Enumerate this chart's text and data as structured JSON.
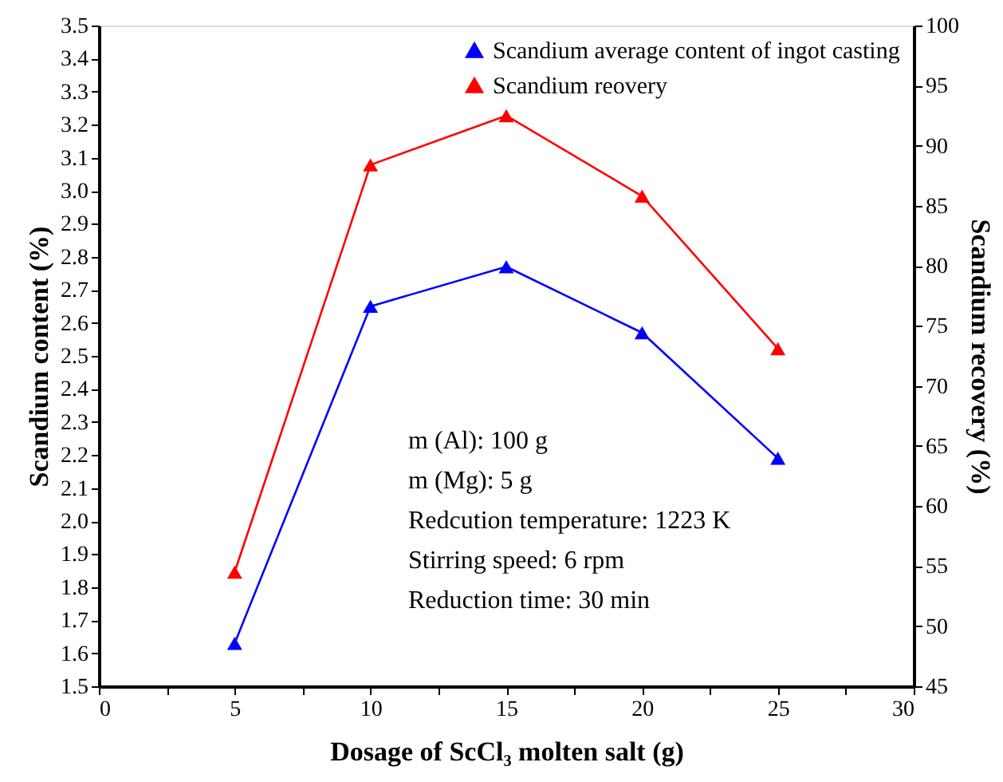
{
  "chart_data": {
    "type": "line",
    "x": [
      5,
      10,
      15,
      20,
      25
    ],
    "series": [
      {
        "name": "Scandium average content of ingot casting",
        "color": "#0000ff",
        "values": [
          1.63,
          2.65,
          2.77,
          2.57,
          2.19
        ]
      },
      {
        "name": "Scandium reovery",
        "color": "#ff0000",
        "values": [
          54.5,
          88.4,
          92.5,
          85.8,
          73.1
        ],
        "axis": "y2"
      }
    ],
    "xlabel": "Dosage of ScCl₃ molten salt  (g)",
    "ylabel": "Scandium content (%)",
    "y2label": "Scandium recovery (%)",
    "xlim": [
      0,
      30
    ],
    "xticks": [
      0,
      {
        "value": 2.5,
        "label": null
      },
      5,
      {
        "value": 7.5,
        "label": null
      },
      10,
      {
        "value": 12.5,
        "label": null
      },
      15,
      {
        "value": 17.5,
        "label": null
      },
      20,
      {
        "value": 22.5,
        "label": null
      },
      25,
      {
        "value": 27.5,
        "label": null
      },
      30
    ],
    "ylim": [
      1.5,
      3.5
    ],
    "yticks": [
      1.5,
      1.6,
      1.7,
      1.8,
      1.9,
      {
        "value": 2.0,
        "label": "2.0"
      },
      2.1,
      2.2,
      2.3,
      2.4,
      2.5,
      2.6,
      2.7,
      2.8,
      2.9,
      {
        "value": 3.0,
        "label": "3.0"
      },
      3.1,
      3.2,
      3.3,
      3.4,
      3.5
    ],
    "y2lim": [
      45,
      100
    ],
    "y2ticks": [
      45,
      50,
      55,
      60,
      65,
      70,
      75,
      80,
      85,
      90,
      95,
      100
    ],
    "annotations": [
      "m (Al): 100 g",
      "m (Mg): 5 g",
      "Redcution temperature: 1223 K",
      "Stirring speed: 6 rpm",
      "Reduction time: 30 min"
    ],
    "marker": "triangle",
    "line_style": "solid",
    "grid": false,
    "legend": "top right"
  }
}
